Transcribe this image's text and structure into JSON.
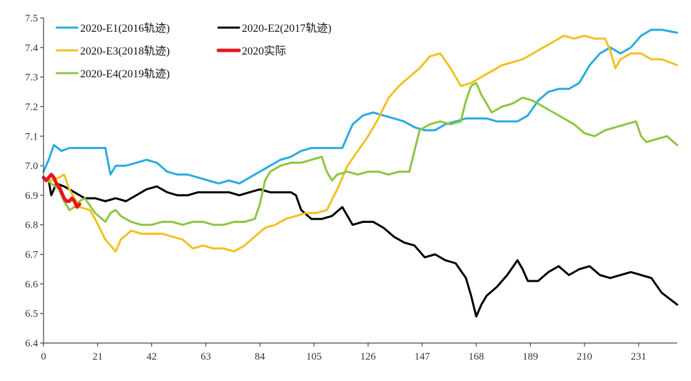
{
  "chart_data": {
    "type": "line",
    "title": "",
    "xlabel": "",
    "ylabel": "",
    "xlim": [
      0,
      246
    ],
    "ylim": [
      6.4,
      7.5
    ],
    "xticks": [
      0,
      21,
      42,
      63,
      84,
      105,
      126,
      147,
      168,
      189,
      210,
      231
    ],
    "yticks": [
      6.4,
      6.5,
      6.6,
      6.7,
      6.8,
      6.9,
      7.0,
      7.1,
      7.2,
      7.3,
      7.4,
      7.5
    ],
    "ytick_labels": [
      "6.4",
      "6.5",
      "6.6",
      "6.7",
      "6.8",
      "6.9",
      "7.0",
      "7.1",
      "7.2",
      "7.3",
      "7.4",
      "7.5"
    ],
    "grid": false,
    "legend_position": "top-left",
    "series": [
      {
        "name": "2020-E1(2016轨迹)",
        "color": "#29abe2",
        "x": [
          0,
          2,
          4,
          7,
          10,
          14,
          20,
          24,
          26,
          28,
          32,
          36,
          40,
          44,
          48,
          52,
          56,
          60,
          64,
          68,
          72,
          76,
          80,
          84,
          88,
          92,
          96,
          100,
          104,
          108,
          112,
          116,
          120,
          124,
          128,
          132,
          136,
          140,
          144,
          148,
          152,
          156,
          160,
          164,
          168,
          172,
          176,
          180,
          184,
          188,
          192,
          196,
          200,
          204,
          208,
          212,
          216,
          220,
          224,
          228,
          232,
          236,
          240,
          246
        ],
        "y": [
          6.98,
          7.02,
          7.07,
          7.05,
          7.06,
          7.06,
          7.06,
          7.06,
          6.97,
          7.0,
          7.0,
          7.01,
          7.02,
          7.01,
          6.98,
          6.97,
          6.97,
          6.96,
          6.95,
          6.94,
          6.95,
          6.94,
          6.96,
          6.98,
          7.0,
          7.02,
          7.03,
          7.05,
          7.06,
          7.06,
          7.06,
          7.06,
          7.14,
          7.17,
          7.18,
          7.17,
          7.16,
          7.15,
          7.13,
          7.12,
          7.12,
          7.14,
          7.15,
          7.16,
          7.16,
          7.16,
          7.15,
          7.15,
          7.15,
          7.17,
          7.22,
          7.25,
          7.26,
          7.26,
          7.28,
          7.34,
          7.38,
          7.4,
          7.38,
          7.4,
          7.44,
          7.46,
          7.46,
          7.45
        ]
      },
      {
        "name": "2020-E2(2017轨迹)",
        "color": "#000000",
        "x": [
          0,
          2,
          3,
          5,
          8,
          12,
          16,
          20,
          24,
          28,
          32,
          36,
          40,
          44,
          48,
          52,
          56,
          60,
          64,
          68,
          72,
          76,
          80,
          84,
          88,
          92,
          96,
          98,
          100,
          104,
          108,
          112,
          116,
          120,
          124,
          128,
          132,
          136,
          140,
          144,
          148,
          152,
          156,
          160,
          164,
          166,
          168,
          170,
          172,
          176,
          180,
          184,
          186,
          188,
          192,
          196,
          200,
          204,
          208,
          212,
          216,
          220,
          224,
          228,
          232,
          236,
          240,
          246
        ],
        "y": [
          6.96,
          6.95,
          6.9,
          6.94,
          6.93,
          6.91,
          6.89,
          6.89,
          6.88,
          6.89,
          6.88,
          6.9,
          6.92,
          6.93,
          6.91,
          6.9,
          6.9,
          6.91,
          6.91,
          6.91,
          6.91,
          6.9,
          6.91,
          6.92,
          6.91,
          6.91,
          6.91,
          6.9,
          6.85,
          6.82,
          6.82,
          6.83,
          6.86,
          6.8,
          6.81,
          6.81,
          6.79,
          6.76,
          6.74,
          6.73,
          6.69,
          6.7,
          6.68,
          6.67,
          6.62,
          6.56,
          6.49,
          6.53,
          6.56,
          6.59,
          6.63,
          6.68,
          6.65,
          6.61,
          6.61,
          6.64,
          6.66,
          6.63,
          6.65,
          6.66,
          6.63,
          6.62,
          6.63,
          6.64,
          6.63,
          6.62,
          6.57,
          6.53
        ]
      },
      {
        "name": "2020-E3(2018轨迹)",
        "color": "#f5bf21",
        "x": [
          0,
          3,
          6,
          8,
          10,
          14,
          18,
          20,
          24,
          28,
          30,
          34,
          38,
          42,
          46,
          50,
          54,
          58,
          62,
          66,
          70,
          74,
          78,
          82,
          86,
          90,
          94,
          98,
          102,
          106,
          110,
          114,
          118,
          122,
          126,
          130,
          134,
          138,
          142,
          146,
          150,
          154,
          158,
          162,
          166,
          170,
          174,
          178,
          182,
          186,
          190,
          194,
          198,
          202,
          206,
          210,
          214,
          218,
          220,
          222,
          224,
          228,
          232,
          236,
          240,
          246
        ],
        "y": [
          6.96,
          6.95,
          6.96,
          6.97,
          6.92,
          6.86,
          6.85,
          6.82,
          6.75,
          6.71,
          6.75,
          6.78,
          6.77,
          6.77,
          6.77,
          6.76,
          6.75,
          6.72,
          6.73,
          6.72,
          6.72,
          6.71,
          6.73,
          6.76,
          6.79,
          6.8,
          6.82,
          6.83,
          6.84,
          6.84,
          6.85,
          6.92,
          7.0,
          7.05,
          7.1,
          7.16,
          7.23,
          7.27,
          7.3,
          7.33,
          7.37,
          7.38,
          7.33,
          7.27,
          7.28,
          7.3,
          7.32,
          7.34,
          7.35,
          7.36,
          7.38,
          7.4,
          7.42,
          7.44,
          7.43,
          7.44,
          7.43,
          7.43,
          7.39,
          7.33,
          7.36,
          7.38,
          7.38,
          7.36,
          7.36,
          7.34
        ]
      },
      {
        "name": "2020实际",
        "color": "#e8141b",
        "x": [
          0,
          1,
          2,
          3,
          4,
          5,
          6,
          7,
          8,
          9,
          10,
          11,
          12,
          13,
          14
        ],
        "y": [
          6.96,
          6.95,
          6.96,
          6.97,
          6.96,
          6.94,
          6.93,
          6.91,
          6.89,
          6.88,
          6.88,
          6.89,
          6.88,
          6.86,
          6.87
        ]
      },
      {
        "name": "2020-E4(2019轨迹)",
        "color": "#8cc63f",
        "x": [
          0,
          3,
          6,
          8,
          10,
          12,
          14,
          16,
          20,
          24,
          26,
          28,
          30,
          34,
          38,
          42,
          46,
          50,
          54,
          58,
          62,
          66,
          70,
          74,
          78,
          82,
          84,
          86,
          88,
          92,
          96,
          100,
          104,
          108,
          110,
          112,
          114,
          118,
          122,
          126,
          130,
          134,
          138,
          142,
          144,
          146,
          150,
          154,
          158,
          162,
          164,
          166,
          168,
          170,
          174,
          178,
          182,
          186,
          190,
          194,
          198,
          202,
          206,
          210,
          214,
          218,
          222,
          226,
          230,
          232,
          234,
          238,
          242,
          246
        ],
        "y": [
          6.96,
          6.94,
          6.92,
          6.88,
          6.85,
          6.86,
          6.88,
          6.89,
          6.84,
          6.81,
          6.84,
          6.85,
          6.83,
          6.81,
          6.8,
          6.8,
          6.81,
          6.81,
          6.8,
          6.81,
          6.81,
          6.8,
          6.8,
          6.81,
          6.81,
          6.82,
          6.87,
          6.95,
          6.98,
          7.0,
          7.01,
          7.01,
          7.02,
          7.03,
          6.98,
          6.95,
          6.97,
          6.98,
          6.97,
          6.98,
          6.98,
          6.97,
          6.98,
          6.98,
          7.05,
          7.12,
          7.14,
          7.15,
          7.14,
          7.15,
          7.22,
          7.27,
          7.28,
          7.24,
          7.18,
          7.2,
          7.21,
          7.23,
          7.22,
          7.2,
          7.18,
          7.16,
          7.14,
          7.11,
          7.1,
          7.12,
          7.13,
          7.14,
          7.15,
          7.1,
          7.08,
          7.09,
          7.1,
          7.07
        ]
      }
    ]
  }
}
